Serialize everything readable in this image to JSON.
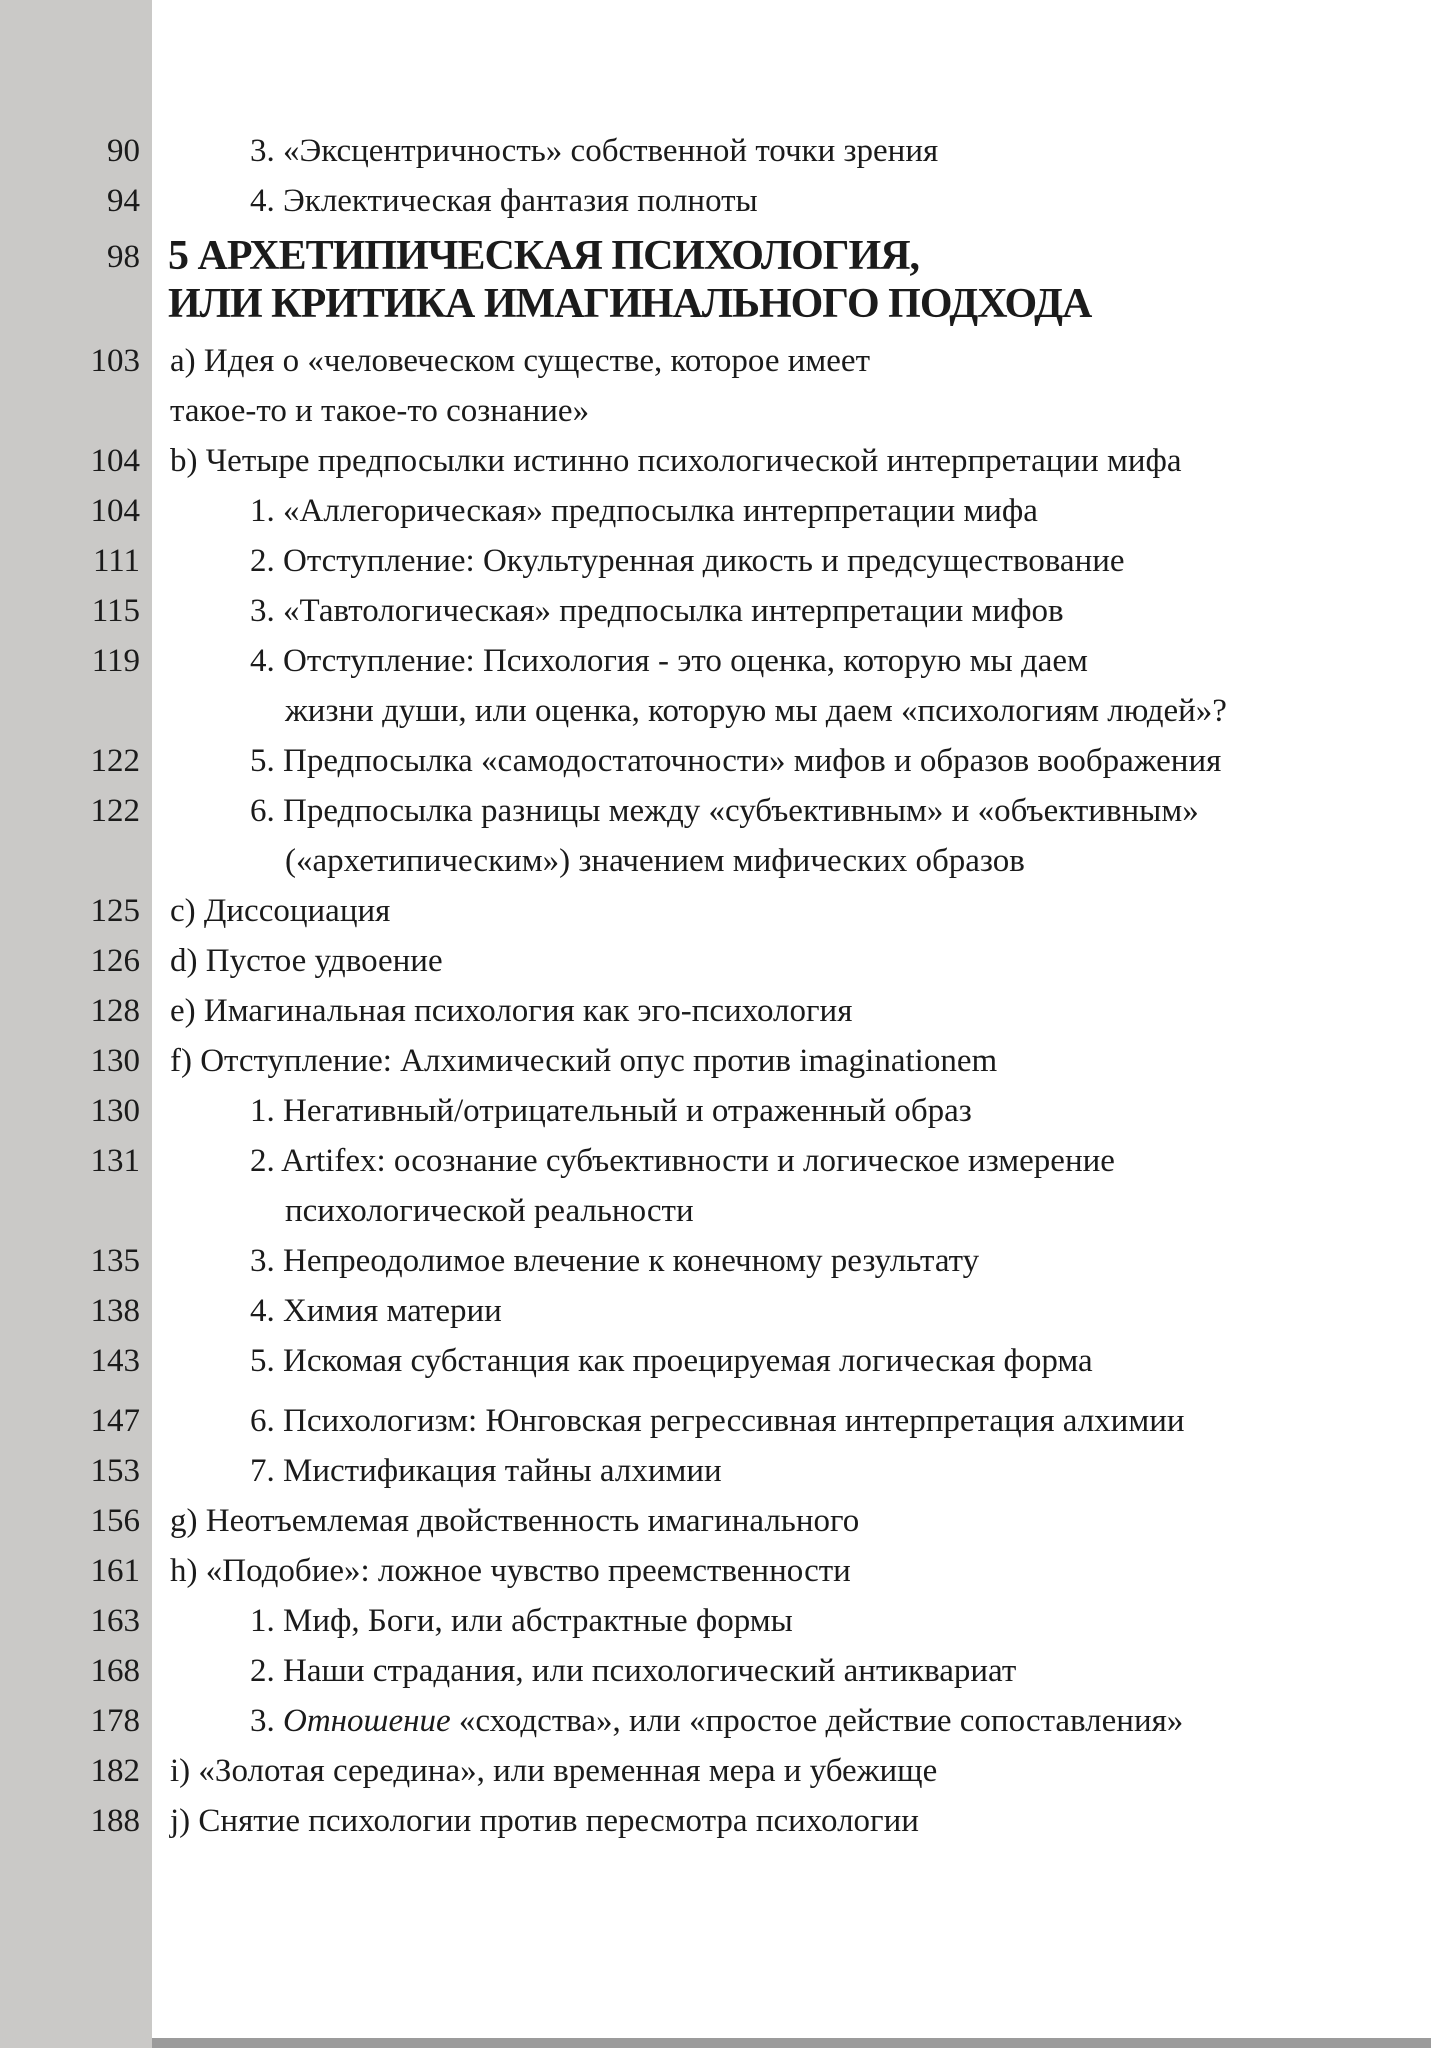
{
  "page": {
    "background": "#ffffff",
    "left_strip_color": "#cac9c7",
    "bottom_bar_color": "#9b9b9b",
    "text_color": "#1b1b1b"
  },
  "toc": {
    "rows": [
      {
        "page": "90",
        "lines": [
          {
            "indent": "sub",
            "text": "3. «Эксцентричность» собственной точки зрения"
          }
        ]
      },
      {
        "page": "94",
        "lines": [
          {
            "indent": "sub",
            "text": "4. Эклектическая фантазия полноты"
          }
        ]
      },
      {
        "page": "98",
        "type": "heading",
        "lines": [
          {
            "indent": "heading",
            "text": "5 АРХЕТИПИЧЕСКАЯ ПСИХОЛОГИЯ,"
          },
          {
            "indent": "heading",
            "text": "ИЛИ КРИТИКА ИМАГИНАЛЬНОГО ПОДХОДА"
          }
        ]
      },
      {
        "page": "103",
        "lines": [
          {
            "indent": "letter",
            "text": "a) Идея о «человеческом существе, которое имеет"
          },
          {
            "indent": "letter",
            "text": "такое-то и такое-то сознание»"
          }
        ]
      },
      {
        "page": "104",
        "lines": [
          {
            "indent": "letter",
            "text": "b) Четыре предпосылки истинно психологической интерпретации мифа"
          }
        ]
      },
      {
        "page": "104",
        "lines": [
          {
            "indent": "sub",
            "text": "1. «Аллегорическая» предпосылка интерпретации мифа"
          }
        ]
      },
      {
        "page": "111",
        "lines": [
          {
            "indent": "sub",
            "text": "2. Отступление: Окультуренная дикость и предсуществование"
          }
        ]
      },
      {
        "page": "115",
        "lines": [
          {
            "indent": "sub",
            "text": "3. «Тавтологическая» предпосылка интерпретации мифов"
          }
        ]
      },
      {
        "page": "119",
        "lines": [
          {
            "indent": "sub",
            "text": "4. Отступление: Психология - это оценка, которую мы даем"
          },
          {
            "indent": "sub-cont",
            "text": "жизни души,  или оценка, которую мы даем «психологиям людей»?"
          }
        ]
      },
      {
        "page": "122",
        "lines": [
          {
            "indent": "sub",
            "text": "5. Предпосылка «самодостаточности» мифов и образов воображения"
          }
        ]
      },
      {
        "page": "122",
        "lines": [
          {
            "indent": "sub",
            "text": "6. Предпосылка разницы между «субъективным» и  «объективным»"
          },
          {
            "indent": "sub-cont",
            "text": "(«архетипическим») значением мифических образов"
          }
        ]
      },
      {
        "page": "125",
        "lines": [
          {
            "indent": "letter",
            "text": "c) Диссоциация"
          }
        ]
      },
      {
        "page": "126",
        "lines": [
          {
            "indent": "letter",
            "text": "d) Пустое удвоение"
          }
        ]
      },
      {
        "page": "128",
        "lines": [
          {
            "indent": "letter",
            "text": "e) Имагинальная психология как эго-психология"
          }
        ]
      },
      {
        "page": "130",
        "lines": [
          {
            "indent": "letter",
            "text": "f) Отступление: Алхимический опус против imaginationem"
          }
        ]
      },
      {
        "page": "130",
        "lines": [
          {
            "indent": "sub",
            "text": "1. Негативный/отрицательный и отраженный образ"
          }
        ]
      },
      {
        "page": "131",
        "lines": [
          {
            "indent": "sub",
            "text": "2. Artifex: осознание субъективности и логическое измерение"
          },
          {
            "indent": "sub-cont",
            "text": "психологической реальности"
          }
        ]
      },
      {
        "page": "135",
        "lines": [
          {
            "indent": "sub",
            "text": "3. Непреодолимое влечение к конечному результату"
          }
        ]
      },
      {
        "page": "138",
        "lines": [
          {
            "indent": "sub",
            "text": "4. Химия материи"
          }
        ]
      },
      {
        "page": "143",
        "lines": [
          {
            "indent": "sub",
            "text": "5. Искомая субстанция как проецируемая логическая форма"
          }
        ]
      },
      {
        "page": "147",
        "lines": [
          {
            "indent": "sub",
            "text": "6. Психологизм: Юнговская регрессивная интерпретация алхимии"
          }
        ]
      },
      {
        "page": "153",
        "lines": [
          {
            "indent": "sub",
            "text": "7. Мистификация тайны алхимии"
          }
        ]
      },
      {
        "page": "156",
        "lines": [
          {
            "indent": "letter",
            "text": "g) Неотъемлемая двойственность имагинального"
          }
        ]
      },
      {
        "page": "161",
        "lines": [
          {
            "indent": "letter",
            "text": "h) «Подобие»: ложное чувство преемственности"
          }
        ]
      },
      {
        "page": "163",
        "lines": [
          {
            "indent": "sub",
            "text": "1. Миф, Боги, или абстрактные формы"
          }
        ]
      },
      {
        "page": "168",
        "lines": [
          {
            "indent": "sub",
            "text": "2. Наши страдания, или психологический антиквариат"
          }
        ]
      },
      {
        "page": "178",
        "lines": [
          {
            "indent": "sub",
            "parts": [
              {
                "t": "3. "
              },
              {
                "t": "Отношение",
                "italic": true
              },
              {
                "t": " «сходства», или «простое действие сопоставления»"
              }
            ]
          }
        ]
      },
      {
        "page": "182",
        "lines": [
          {
            "indent": "letter",
            "text": "i) «Золотая середина», или временная мера и убежище"
          }
        ]
      },
      {
        "page": "188",
        "lines": [
          {
            "indent": "letter",
            "text": "j) Снятие психологии против пересмотра психологии"
          }
        ]
      }
    ]
  }
}
